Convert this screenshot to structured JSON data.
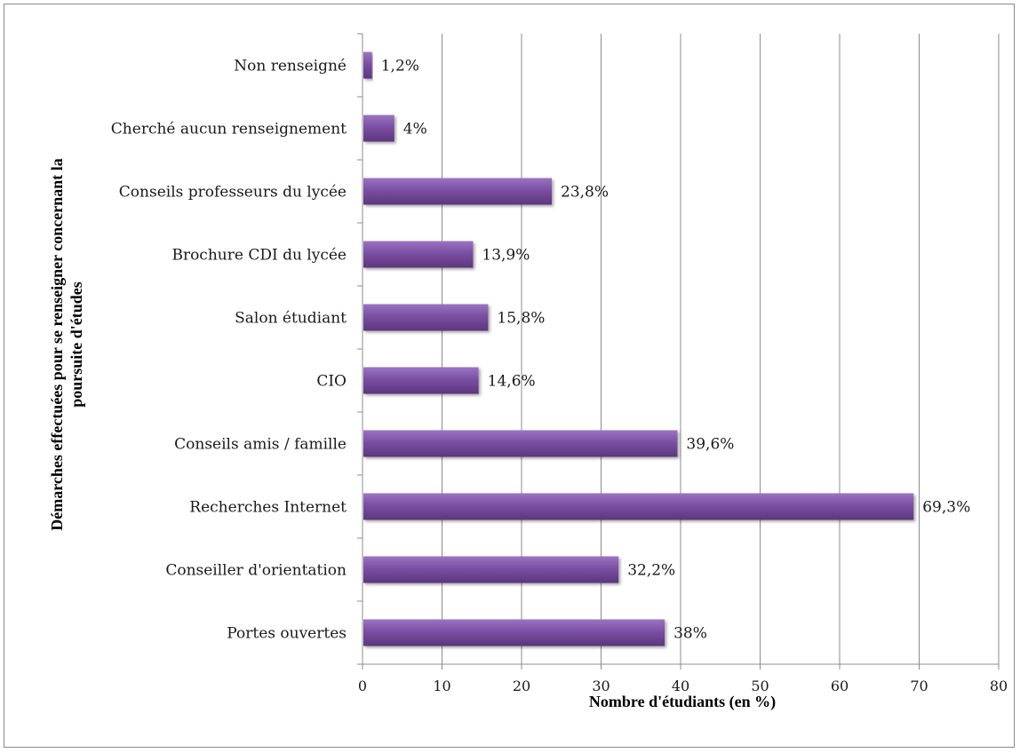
{
  "chart_data": {
    "type": "bar",
    "orientation": "horizontal",
    "title": "",
    "xlabel": "Nombre d'étudiants (en %)",
    "ylabel_line1": "Démarches effectuées pour se renseigner concernant la",
    "ylabel_line2": "poursuite d'études",
    "xlim": [
      0,
      80
    ],
    "xticks": [
      0,
      10,
      20,
      30,
      40,
      50,
      60,
      70,
      80
    ],
    "grid": true,
    "legend": "none",
    "bar_color": "#7b4fa3",
    "categories": [
      "Non renseigné",
      "Cherché aucun renseignement",
      "Conseils professeurs du lycée",
      "Brochure CDI  du lycée",
      "Salon étudiant",
      "CIO",
      "Conseils amis /  famille",
      "Recherches Internet",
      "Conseiller d'orientation",
      "Portes ouvertes"
    ],
    "values": [
      1.2,
      4,
      23.8,
      13.9,
      15.8,
      14.6,
      39.6,
      69.3,
      32.2,
      38
    ],
    "data_labels": [
      "1,2%",
      "4%",
      "23,8%",
      "13,9%",
      "15,8%",
      "14,6%",
      "39,6%",
      "69,3%",
      "32,2%",
      "38%"
    ]
  }
}
